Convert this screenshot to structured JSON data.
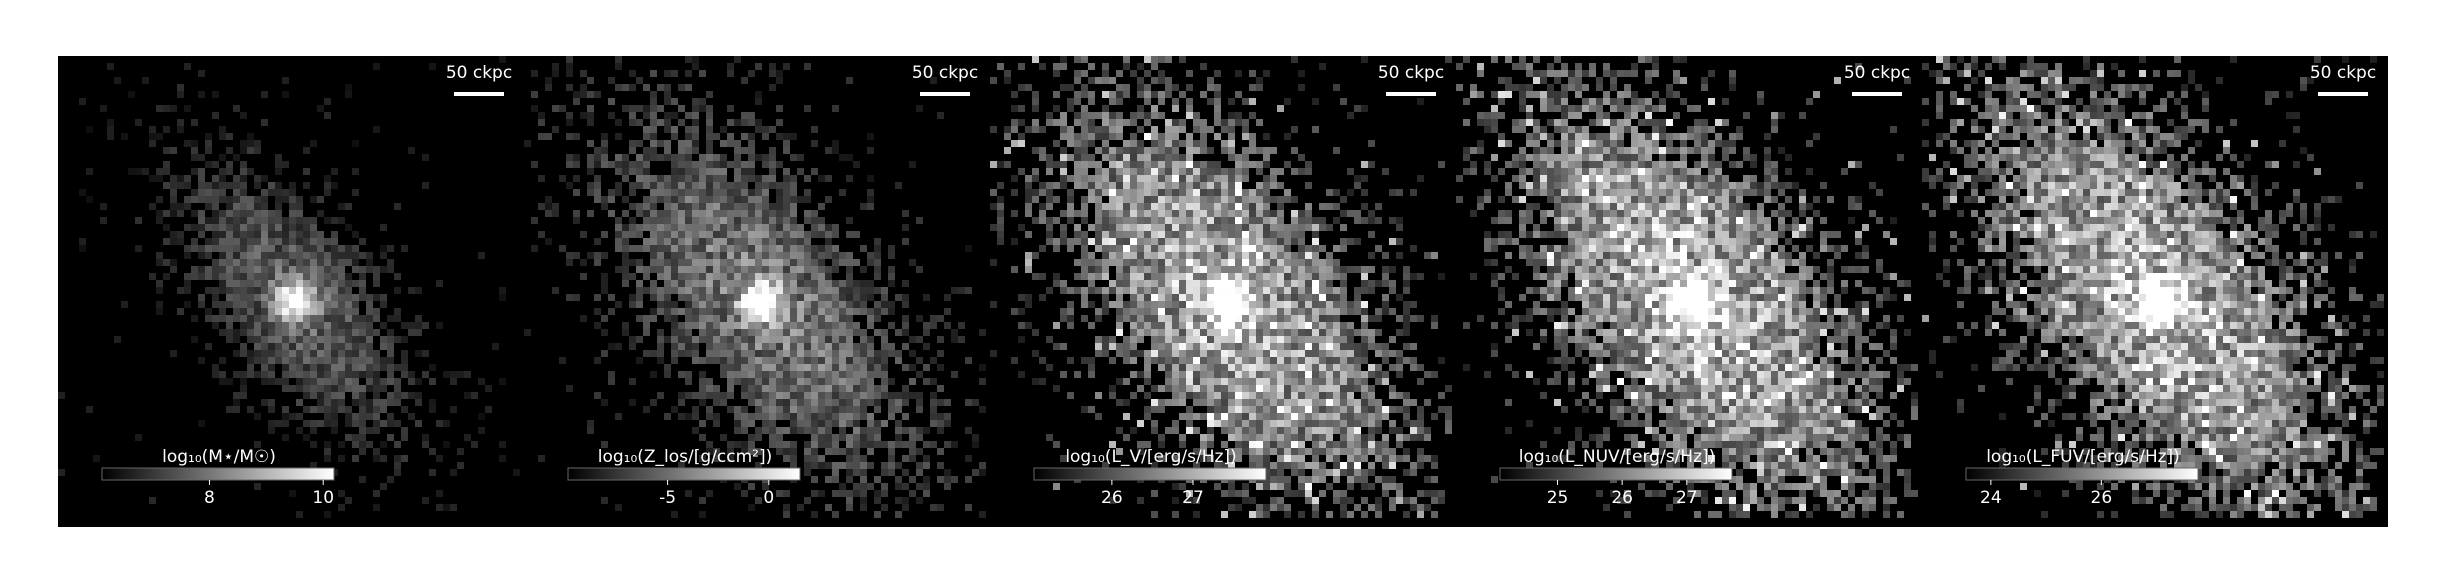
{
  "panels": [
    {
      "scale_label": "50 ckpc",
      "colorbar_label": "log₁₀(M⋆/M☉)",
      "cbar_lim": [
        6.11,
        10.19
      ],
      "cbar_ticks": [
        8,
        10
      ]
    },
    {
      "scale_label": "50 ckpc",
      "colorbar_label": "log₁₀(Z_los/[g/ccm²])",
      "cbar_lim": [
        -9.92,
        1.54
      ],
      "cbar_ticks": [
        -5,
        0
      ]
    },
    {
      "scale_label": "50 ckpc",
      "colorbar_label": "log₁₀(L_V/[erg/s/Hz])",
      "cbar_lim": [
        25.04,
        27.9
      ],
      "cbar_ticks": [
        26,
        27
      ]
    },
    {
      "scale_label": "50 ckpc",
      "colorbar_label": "log₁₀(L_NUV/[erg/s/Hz])",
      "cbar_lim": [
        24.11,
        27.7
      ],
      "cbar_ticks": [
        25,
        26,
        27
      ]
    },
    {
      "scale_label": "50 ckpc",
      "colorbar_label": "log₁₀(L_FUV/[erg/s/Hz])",
      "cbar_lim": [
        23.55,
        27.75
      ],
      "cbar_ticks": [
        24,
        26
      ]
    }
  ]
}
